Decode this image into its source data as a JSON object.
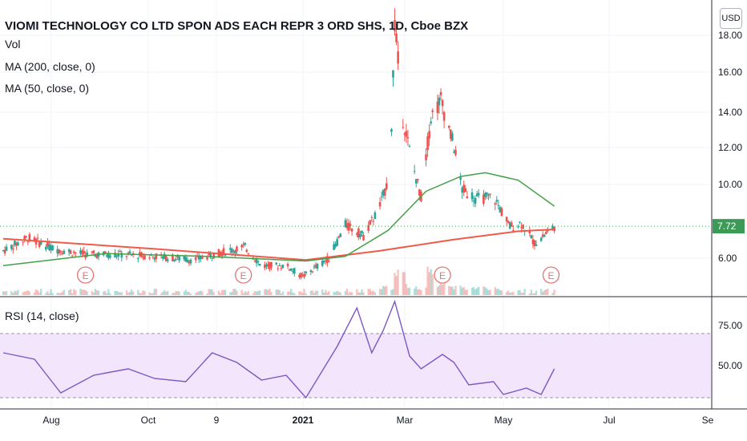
{
  "header": {
    "title": "VIOMI TECHNOLOGY CO LTD SPON ADS EACH REPR 3 ORD SHS, 1D, Cboe BZX",
    "vol_label": "Vol",
    "ma200_label": "MA (200, close, 0)",
    "ma50_label": "MA (50, close, 0)",
    "rsi_label": "RSI (14, close)",
    "currency": "USD"
  },
  "colors": {
    "up": "#26a69a",
    "down": "#ef5350",
    "ma200": "#f05a4b",
    "ma50": "#43a047",
    "rsi": "#7e57c2",
    "rsi_band": "#f3e5fb",
    "last_price_badge": "#3c9a57"
  },
  "chart_data": [
    {
      "type": "candlestick",
      "title": "VIOMI TECHNOLOGY CO LTD SPON ADS EACH REPR 3 ORD SHS, 1D, Cboe BZX",
      "y_ticks": [
        "18.00",
        "16.00",
        "14.00",
        "12.00",
        "10.00",
        "6.00"
      ],
      "ylim": [
        4.2,
        18.9
      ],
      "last_price": "7.72",
      "x_tick_labels": [
        "Aug",
        "Oct",
        "9",
        "2021",
        "Mar",
        "May",
        "Jul",
        "Se"
      ],
      "earnings_marker": "E",
      "price_path": [
        {
          "date": "2020-07-01",
          "value": 6.4
        },
        {
          "date": "2020-07-16",
          "value": 7.1
        },
        {
          "date": "2020-08-01",
          "value": 6.5
        },
        {
          "date": "2020-08-20",
          "value": 6.2
        },
        {
          "date": "2020-09-10",
          "value": 6.2
        },
        {
          "date": "2020-10-01",
          "value": 6.1
        },
        {
          "date": "2020-10-25",
          "value": 5.9
        },
        {
          "date": "2020-11-10",
          "value": 6.3
        },
        {
          "date": "2020-11-25",
          "value": 6.6
        },
        {
          "date": "2020-12-05",
          "value": 5.6
        },
        {
          "date": "2020-12-20",
          "value": 5.6
        },
        {
          "date": "2020-12-30",
          "value": 5.0
        },
        {
          "date": "2021-01-15",
          "value": 6.0
        },
        {
          "date": "2021-01-25",
          "value": 7.8
        },
        {
          "date": "2021-02-05",
          "value": 7.2
        },
        {
          "date": "2021-02-15",
          "value": 8.8
        },
        {
          "date": "2021-02-21",
          "value": 10.5
        },
        {
          "date": "2021-02-24",
          "value": 18.6
        },
        {
          "date": "2021-03-01",
          "value": 13.5
        },
        {
          "date": "2021-03-07",
          "value": 11.0
        },
        {
          "date": "2021-03-12",
          "value": 9.3
        },
        {
          "date": "2021-03-18",
          "value": 13.6
        },
        {
          "date": "2021-03-24",
          "value": 14.5
        },
        {
          "date": "2021-04-01",
          "value": 12.0
        },
        {
          "date": "2021-04-06",
          "value": 9.7
        },
        {
          "date": "2021-04-15",
          "value": 9.2
        },
        {
          "date": "2021-04-25",
          "value": 9.3
        },
        {
          "date": "2021-05-05",
          "value": 7.7
        },
        {
          "date": "2021-05-12",
          "value": 7.9
        },
        {
          "date": "2021-05-20",
          "value": 6.8
        },
        {
          "date": "2021-05-28",
          "value": 7.4
        },
        {
          "date": "2021-06-01",
          "value": 7.72
        }
      ],
      "ma200": [
        {
          "date": "2020-07-01",
          "value": 7.05
        },
        {
          "date": "2020-10-01",
          "value": 6.5
        },
        {
          "date": "2021-01-01",
          "value": 5.9
        },
        {
          "date": "2021-02-15",
          "value": 6.4
        },
        {
          "date": "2021-04-01",
          "value": 7.0
        },
        {
          "date": "2021-05-10",
          "value": 7.45
        },
        {
          "date": "2021-06-01",
          "value": 7.55
        }
      ],
      "ma50": [
        {
          "date": "2020-07-01",
          "value": 5.6
        },
        {
          "date": "2020-09-01",
          "value": 6.25
        },
        {
          "date": "2020-11-01",
          "value": 6.1
        },
        {
          "date": "2021-01-01",
          "value": 5.85
        },
        {
          "date": "2021-01-25",
          "value": 6.1
        },
        {
          "date": "2021-02-20",
          "value": 7.5
        },
        {
          "date": "2021-03-15",
          "value": 9.6
        },
        {
          "date": "2021-04-05",
          "value": 10.4
        },
        {
          "date": "2021-04-20",
          "value": 10.6
        },
        {
          "date": "2021-05-10",
          "value": 10.2
        },
        {
          "date": "2021-06-01",
          "value": 8.8
        }
      ],
      "earnings_dates": [
        "2020-08-20",
        "2020-11-24",
        "2021-03-25",
        "2021-05-30"
      ]
    },
    {
      "type": "line",
      "title": "RSI (14, close)",
      "y_ticks": [
        "75.00",
        "50.00"
      ],
      "ylim": [
        24,
        94
      ],
      "bands": [
        30,
        70
      ],
      "series": [
        {
          "values": [
            {
              "date": "2020-07-01",
              "value": 58
            },
            {
              "date": "2020-07-20",
              "value": 54
            },
            {
              "date": "2020-08-05",
              "value": 33
            },
            {
              "date": "2020-08-25",
              "value": 44
            },
            {
              "date": "2020-09-15",
              "value": 48
            },
            {
              "date": "2020-10-01",
              "value": 42
            },
            {
              "date": "2020-10-20",
              "value": 40
            },
            {
              "date": "2020-11-05",
              "value": 58
            },
            {
              "date": "2020-11-20",
              "value": 52
            },
            {
              "date": "2020-12-05",
              "value": 41
            },
            {
              "date": "2020-12-20",
              "value": 44
            },
            {
              "date": "2021-01-01",
              "value": 30
            },
            {
              "date": "2021-01-20",
              "value": 62
            },
            {
              "date": "2021-02-01",
              "value": 86
            },
            {
              "date": "2021-02-10",
              "value": 58
            },
            {
              "date": "2021-02-17",
              "value": 72
            },
            {
              "date": "2021-02-24",
              "value": 90
            },
            {
              "date": "2021-03-05",
              "value": 56
            },
            {
              "date": "2021-03-12",
              "value": 48
            },
            {
              "date": "2021-03-25",
              "value": 57
            },
            {
              "date": "2021-04-01",
              "value": 52
            },
            {
              "date": "2021-04-10",
              "value": 38
            },
            {
              "date": "2021-04-25",
              "value": 40
            },
            {
              "date": "2021-05-01",
              "value": 32
            },
            {
              "date": "2021-05-15",
              "value": 36
            },
            {
              "date": "2021-05-24",
              "value": 32
            },
            {
              "date": "2021-06-01",
              "value": 48
            }
          ]
        }
      ]
    }
  ]
}
